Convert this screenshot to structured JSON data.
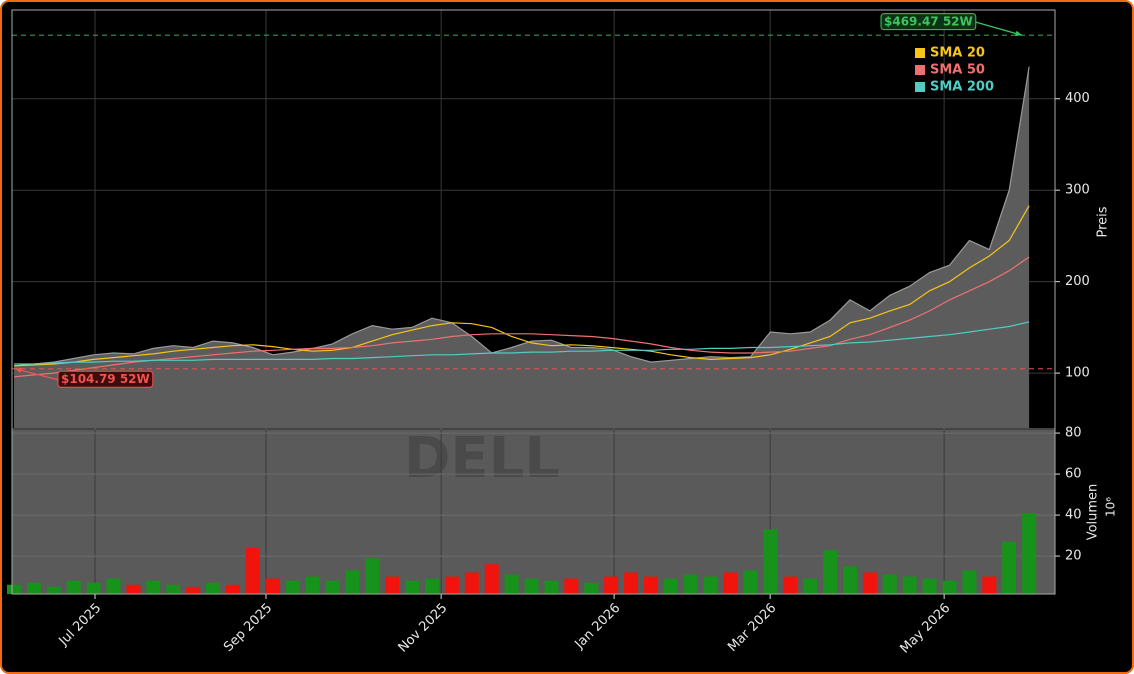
{
  "chart_data": [
    {
      "type": "area",
      "watermark": "DELL",
      "ylabel": "Preis",
      "x": [
        0,
        1,
        2,
        3,
        4,
        5,
        6,
        7,
        8,
        9,
        10,
        11,
        12,
        13,
        14,
        15,
        16,
        17,
        18,
        19,
        20,
        21,
        22,
        23,
        24,
        25,
        26,
        27,
        28,
        29,
        30,
        31,
        32,
        33,
        34,
        35,
        36,
        37,
        38,
        39,
        40,
        41,
        42,
        43,
        44,
        45,
        46,
        47,
        48,
        49,
        50,
        51
      ],
      "values": [
        108,
        110,
        112,
        116,
        120,
        122,
        121,
        127,
        130,
        128,
        135,
        133,
        128,
        120,
        123,
        127,
        132,
        143,
        152,
        148,
        150,
        160,
        155,
        140,
        122,
        128,
        135,
        136,
        128,
        128,
        126,
        118,
        112,
        114,
        116,
        118,
        117,
        118,
        145,
        143,
        145,
        158,
        180,
        168,
        185,
        195,
        210,
        218,
        245,
        235,
        300,
        435
      ],
      "color": "#9a9a9a",
      "fill": "#5c5c5c",
      "series": [
        {
          "name": "SMA 20",
          "color": "#f5c518",
          "values": [
            108,
            109,
            110,
            112,
            115,
            117,
            119,
            121,
            124,
            126,
            128,
            130,
            131,
            129,
            126,
            124,
            125,
            128,
            135,
            142,
            147,
            152,
            155,
            154,
            150,
            140,
            133,
            130,
            131,
            130,
            128,
            126,
            124,
            120,
            117,
            115,
            116,
            117,
            120,
            126,
            133,
            140,
            155,
            160,
            168,
            175,
            190,
            200,
            215,
            228,
            245,
            283
          ]
        },
        {
          "name": "SMA 50",
          "color": "#f07070",
          "values": [
            96,
            98,
            100,
            103,
            106,
            109,
            112,
            114,
            116,
            118,
            120,
            122,
            124,
            125,
            126,
            127,
            127,
            128,
            130,
            133,
            135,
            137,
            140,
            142,
            143,
            143,
            143,
            142,
            141,
            140,
            138,
            135,
            132,
            128,
            125,
            123,
            122,
            122,
            123,
            124,
            127,
            130,
            137,
            142,
            150,
            158,
            168,
            180,
            190,
            200,
            212,
            227
          ]
        },
        {
          "name": "SMA 200",
          "color": "#4ecdc4",
          "values": [
            110,
            110,
            111,
            112,
            112,
            113,
            113,
            114,
            114,
            114,
            115,
            115,
            115,
            115,
            115,
            115,
            116,
            116,
            117,
            118,
            119,
            120,
            120,
            121,
            122,
            122,
            123,
            123,
            124,
            124,
            125,
            125,
            125,
            126,
            126,
            127,
            127,
            128,
            128,
            129,
            130,
            131,
            133,
            134,
            136,
            138,
            140,
            142,
            145,
            148,
            151,
            156
          ]
        }
      ],
      "annotations": [
        {
          "label": "$469.47 52W",
          "value": 469.47,
          "color": "#3ec45f"
        },
        {
          "label": "$104.79 52W",
          "value": 104.79,
          "color": "#ef5350"
        }
      ],
      "xlim": [
        -0.1,
        52.3
      ],
      "xticks": [
        {
          "value": 4.07,
          "label": "Jul 2025"
        },
        {
          "value": 12.66,
          "label": "Sep 2025"
        },
        {
          "value": 21.46,
          "label": "Nov 2025"
        },
        {
          "value": 30.15,
          "label": "Jan 2026"
        },
        {
          "value": 37.99,
          "label": "Mar 2026"
        },
        {
          "value": 46.73,
          "label": "May 2026"
        }
      ],
      "ylim": [
        40,
        497
      ],
      "yticks": [
        100,
        200,
        300,
        400
      ],
      "grid": true
    },
    {
      "type": "bar",
      "ylabel": "Volumen",
      "scale_label": "10⁶",
      "x": [
        0,
        1,
        2,
        3,
        4,
        5,
        6,
        7,
        8,
        9,
        10,
        11,
        12,
        13,
        14,
        15,
        16,
        17,
        18,
        19,
        20,
        21,
        22,
        23,
        24,
        25,
        26,
        27,
        28,
        29,
        30,
        31,
        32,
        33,
        34,
        35,
        36,
        37,
        38,
        39,
        40,
        41,
        42,
        43,
        44,
        45,
        46,
        47,
        48,
        49,
        50,
        51
      ],
      "values": [
        6,
        7,
        5,
        8,
        7,
        9,
        6,
        8,
        6,
        5,
        7,
        6,
        24,
        9,
        8,
        10,
        8,
        13,
        19,
        10,
        8,
        9,
        10,
        12,
        16,
        11,
        9,
        8,
        9,
        7,
        10,
        12,
        10,
        9,
        11,
        10,
        12,
        13,
        33,
        10,
        9,
        23,
        15,
        12,
        11,
        10,
        9,
        8,
        13,
        10,
        27,
        41
      ],
      "up_color": "#17921a",
      "down_color": "#f0140c",
      "xlim": [
        -0.1,
        52.3
      ],
      "ylim": [
        1.5,
        81.5
      ],
      "yticks": [
        20,
        40,
        60,
        80
      ],
      "grid": true
    }
  ]
}
